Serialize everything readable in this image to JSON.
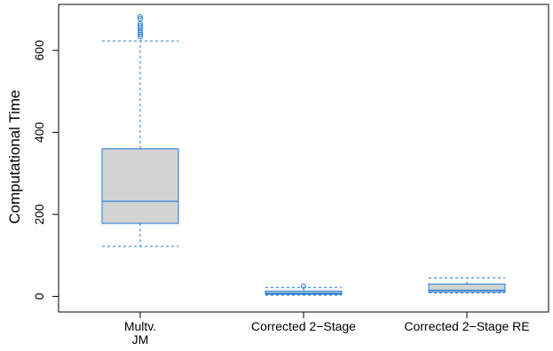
{
  "chart_data": {
    "type": "boxplot",
    "title": "",
    "xlabel": "",
    "ylabel": "Computational Time",
    "ylim": [
      -38,
      712
    ],
    "yticks": [
      0,
      200,
      400,
      600
    ],
    "grid": false,
    "legend": "none",
    "colors": {
      "box_fill": "#d3d3d3",
      "stroke": "#1f78d8",
      "frame": "#000000"
    },
    "categories": [
      {
        "lines": [
          "Multv.",
          "JM"
        ]
      },
      {
        "lines": [
          "Corrected 2−Stage"
        ]
      },
      {
        "lines": [
          "Corrected 2−Stage RE"
        ]
      }
    ],
    "boxes": [
      {
        "whisker_low": 122,
        "q1": 178,
        "median": 232,
        "q3": 360,
        "whisker_high": 623,
        "outliers": [
          633,
          638,
          643,
          649,
          655,
          660,
          665,
          677,
          682
        ]
      },
      {
        "whisker_low": 3,
        "q1": 5,
        "median": 8,
        "q3": 13,
        "whisker_high": 22,
        "outliers": [
          25
        ]
      },
      {
        "whisker_low": 9,
        "q1": 11,
        "median": 15,
        "q3": 30,
        "whisker_high": 45,
        "outliers": []
      }
    ]
  }
}
